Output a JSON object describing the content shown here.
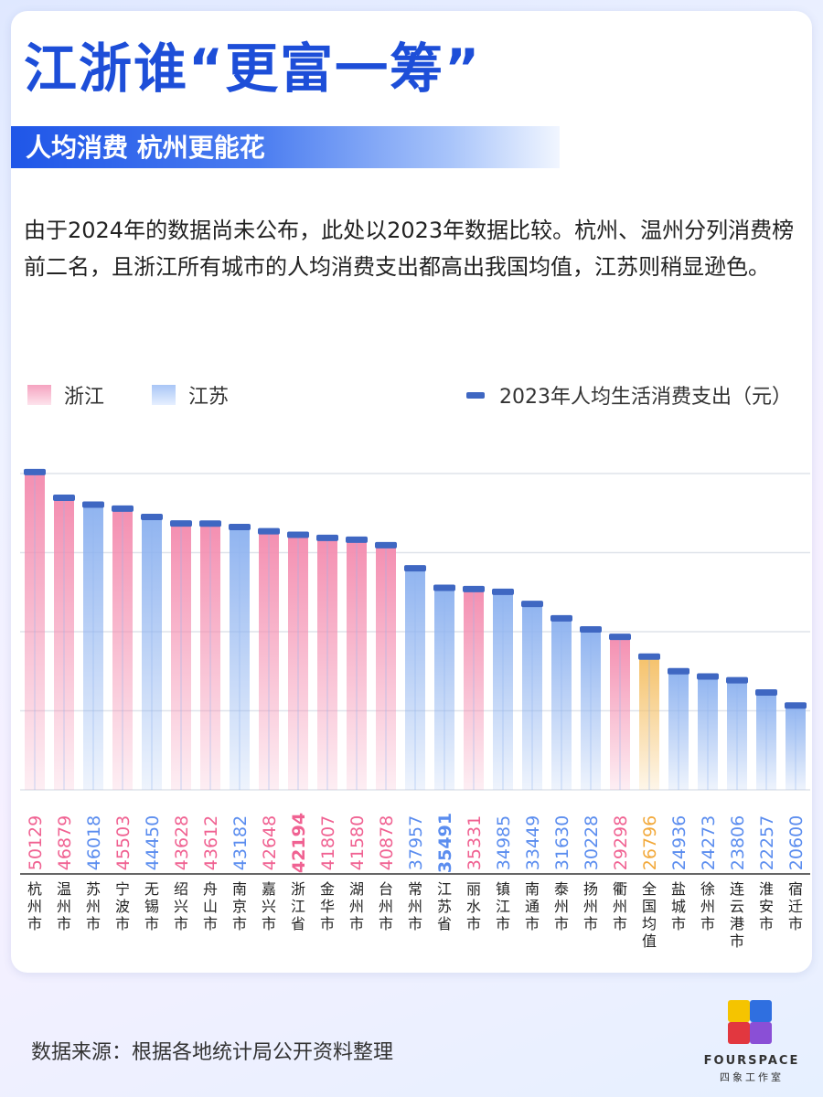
{
  "header": {
    "title": "江浙谁“更富一筹”",
    "subtitle": "人均消费 杭州更能花"
  },
  "description": "由于2024年的数据尚未公布，此处以2023年数据比较。杭州、温州分列消费榜前二名，且浙江所有城市的人均消费支出都高出我国均值，江苏则稍显逊色。",
  "legend": {
    "zhejiang": "浙江",
    "jiangsu": "江苏",
    "metric": "2023年人均生活消费支出（元）"
  },
  "colors": {
    "zhejiang": "#f48fb1",
    "jiangsu": "#90b4f0",
    "national": "#f5c26b",
    "zhejiang_text": "#f06292",
    "jiangsu_text": "#5b8def",
    "national_text": "#f2a93b",
    "cap": "#3f67c2",
    "title": "#1d4ed8"
  },
  "chart_data": {
    "type": "bar",
    "categories": [
      "杭州市",
      "温州市",
      "苏州市",
      "宁波市",
      "无锡市",
      "绍兴市",
      "舟山市",
      "南京市",
      "嘉兴市",
      "浙江省",
      "金华市",
      "湖州市",
      "台州市",
      "常州市",
      "江苏省",
      "丽水市",
      "镇江市",
      "南通市",
      "泰州市",
      "扬州市",
      "衢州市",
      "全国均值",
      "盐城市",
      "徐州市",
      "连云港市",
      "淮安市",
      "宿迁市"
    ],
    "values": [
      50129,
      46879,
      46018,
      45503,
      44450,
      43628,
      43612,
      43182,
      42648,
      42194,
      41807,
      41580,
      40878,
      37957,
      35491,
      35331,
      34985,
      33449,
      31630,
      30228,
      29298,
      26796,
      24936,
      24273,
      23806,
      22257,
      20600
    ],
    "groups": [
      "zhejiang",
      "zhejiang",
      "jiangsu",
      "zhejiang",
      "jiangsu",
      "zhejiang",
      "zhejiang",
      "jiangsu",
      "zhejiang",
      "zhejiang",
      "zhejiang",
      "zhejiang",
      "zhejiang",
      "jiangsu",
      "jiangsu",
      "zhejiang",
      "jiangsu",
      "jiangsu",
      "jiangsu",
      "jiangsu",
      "zhejiang",
      "national",
      "jiangsu",
      "jiangsu",
      "jiangsu",
      "jiangsu",
      "jiangsu"
    ],
    "highlight": [
      "浙江省",
      "江苏省"
    ],
    "ylim": [
      10000,
      50000
    ],
    "grid": true
  },
  "footer": {
    "source": "数据来源：根据各地统计局公开资料整理"
  },
  "logo": {
    "name": "FOURSPACE",
    "cn": "四象工作室"
  }
}
